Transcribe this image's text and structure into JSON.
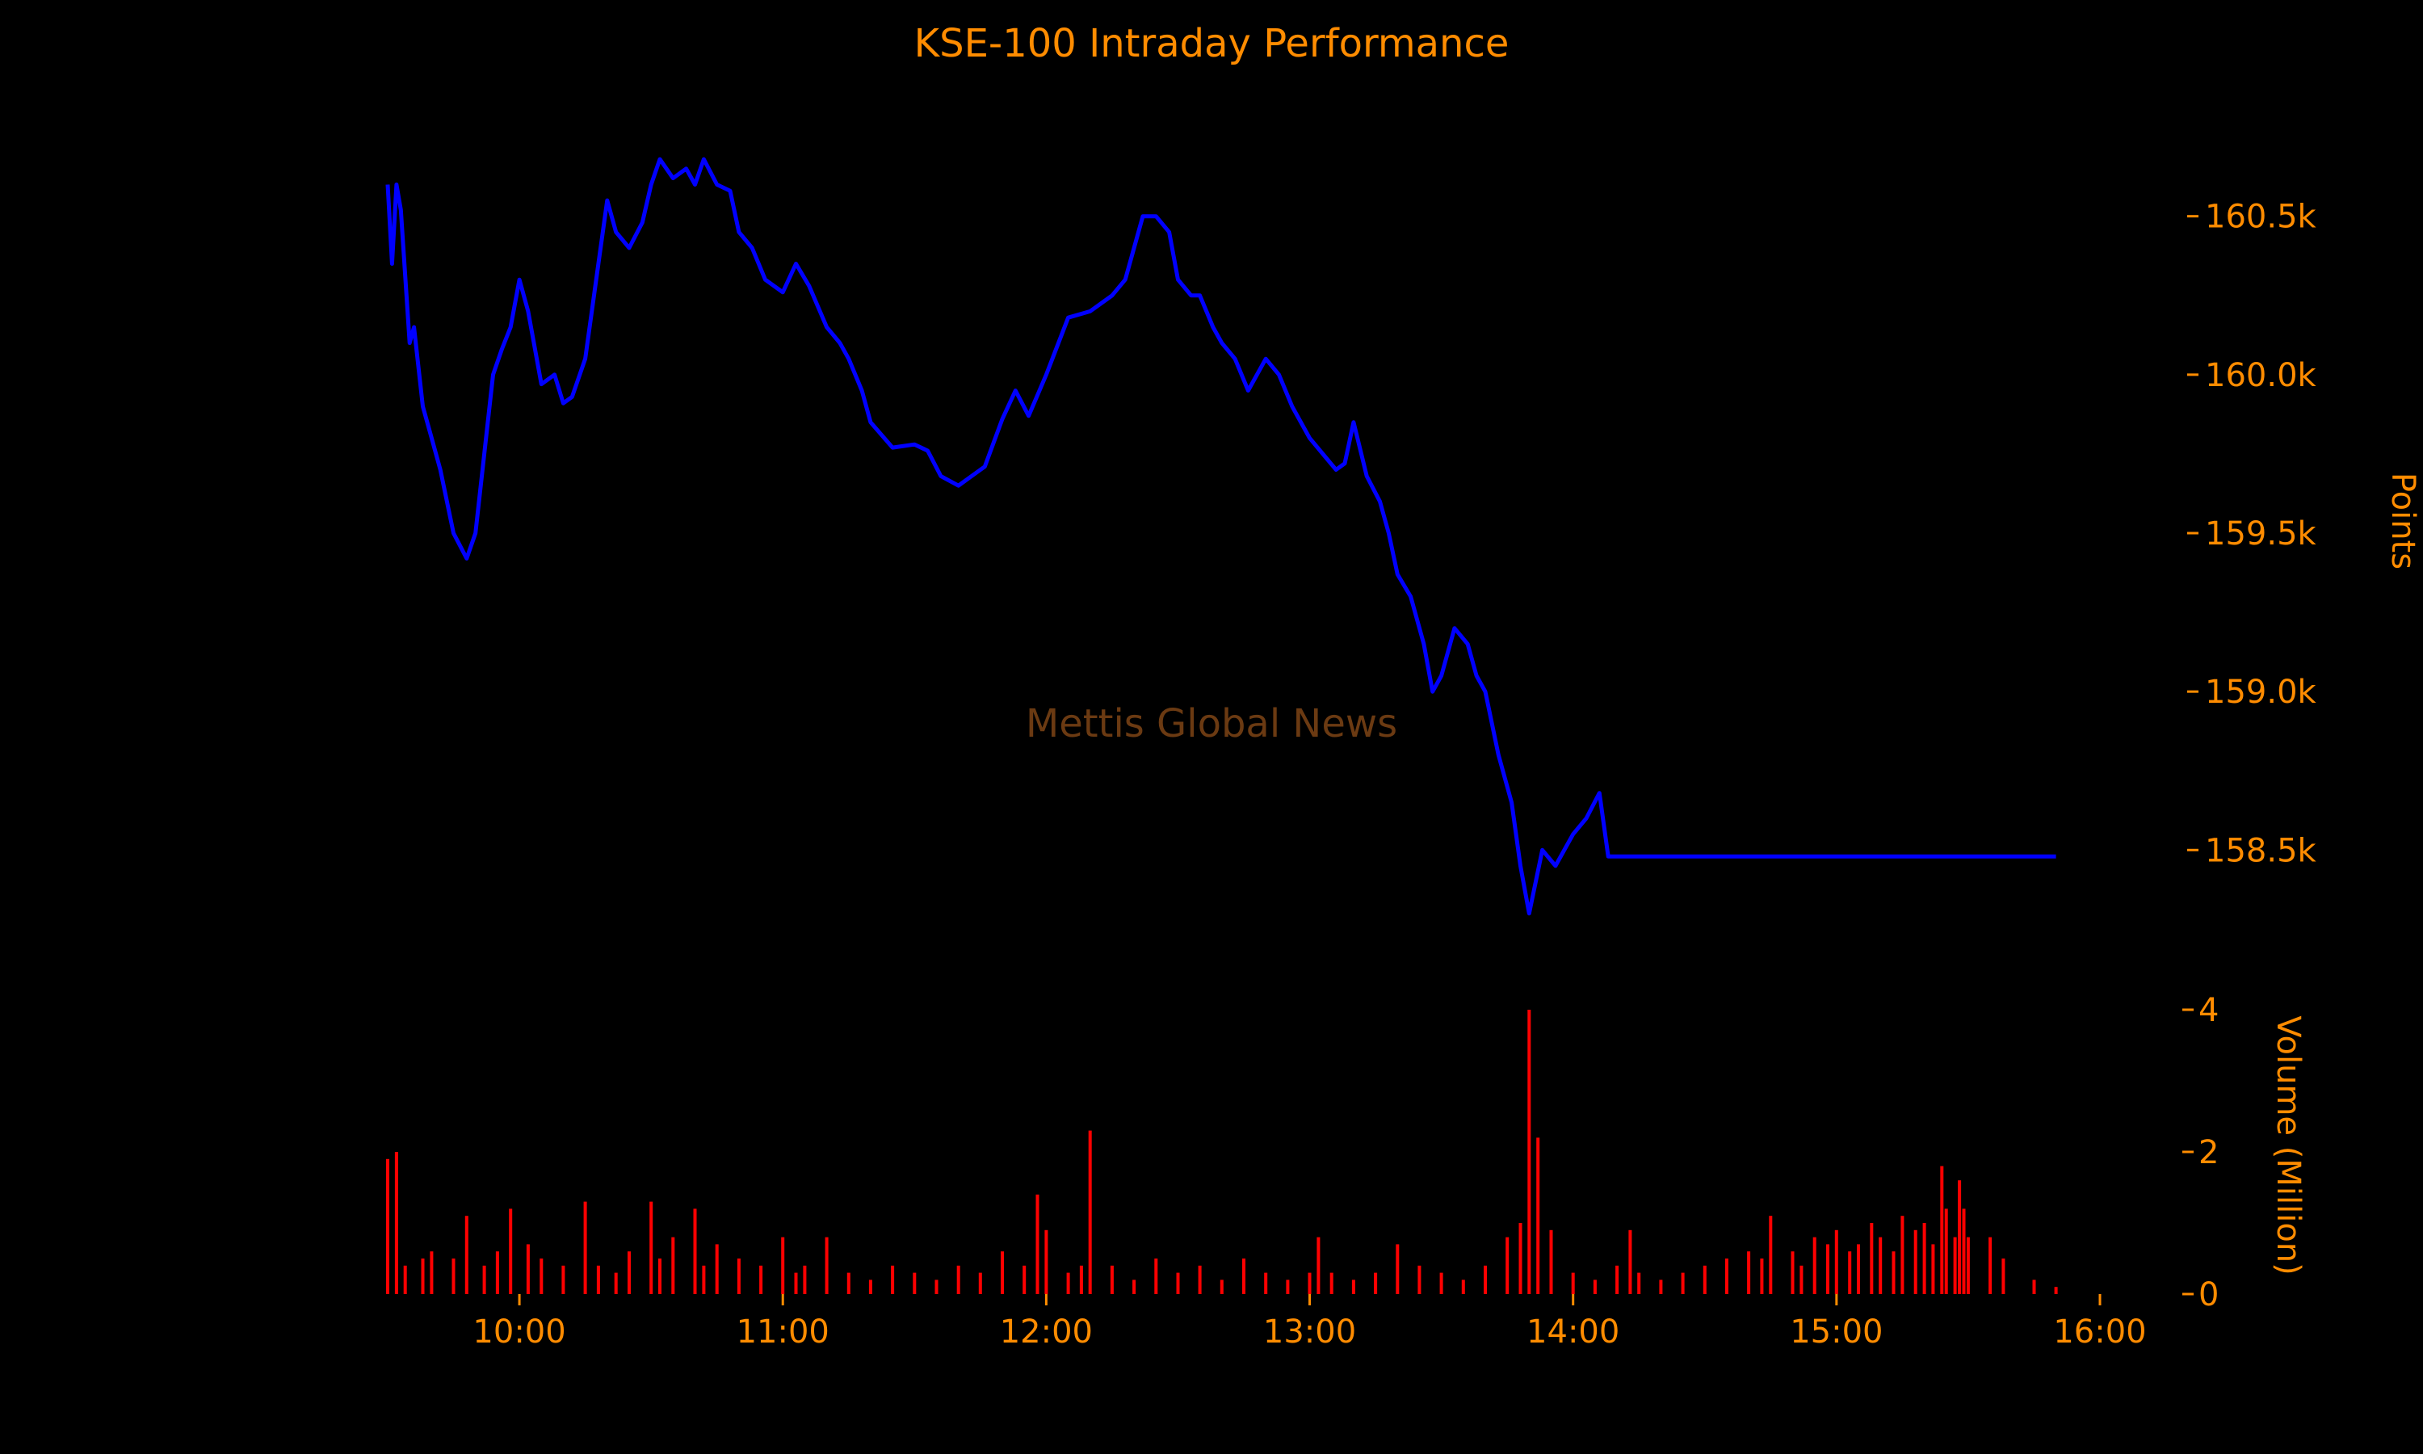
{
  "chart_data": [
    {
      "type": "line",
      "title": "KSE-100 Intraday Performance",
      "ylabel": "Points",
      "xlim": [
        "09:30",
        "16:00"
      ],
      "ylim": [
        158200,
        160800
      ],
      "yticks": [
        {
          "value": 158500,
          "label": "158.5k"
        },
        {
          "value": 159000,
          "label": "159.0k"
        },
        {
          "value": 159500,
          "label": "159.5k"
        },
        {
          "value": 160000,
          "label": "160.0k"
        },
        {
          "value": 160500,
          "label": "160.5k"
        }
      ],
      "grid": false,
      "series": [
        {
          "color": "#0000ff",
          "x": [
            "09:30",
            "09:31",
            "09:32",
            "09:33",
            "09:35",
            "09:36",
            "09:38",
            "09:40",
            "09:42",
            "09:45",
            "09:48",
            "09:50",
            "09:52",
            "09:54",
            "09:56",
            "09:58",
            "10:00",
            "10:02",
            "10:05",
            "10:08",
            "10:10",
            "10:12",
            "10:15",
            "10:18",
            "10:20",
            "10:22",
            "10:25",
            "10:28",
            "10:30",
            "10:32",
            "10:35",
            "10:38",
            "10:40",
            "10:42",
            "10:45",
            "10:48",
            "10:50",
            "10:53",
            "10:56",
            "11:00",
            "11:03",
            "11:06",
            "11:10",
            "11:13",
            "11:15",
            "11:18",
            "11:20",
            "11:25",
            "11:30",
            "11:33",
            "11:36",
            "11:40",
            "11:43",
            "11:46",
            "11:50",
            "11:53",
            "11:56",
            "12:00",
            "12:05",
            "12:10",
            "12:15",
            "12:18",
            "12:20",
            "12:22",
            "12:25",
            "12:28",
            "12:30",
            "12:33",
            "12:35",
            "12:38",
            "12:40",
            "12:43",
            "12:46",
            "12:50",
            "12:53",
            "12:56",
            "13:00",
            "13:03",
            "13:06",
            "13:08",
            "13:10",
            "13:13",
            "13:16",
            "13:18",
            "13:20",
            "13:23",
            "13:26",
            "13:28",
            "13:30",
            "13:33",
            "13:36",
            "13:38",
            "13:40",
            "13:43",
            "13:46",
            "13:48",
            "13:50",
            "13:53",
            "13:56",
            "14:00",
            "14:03",
            "14:06",
            "14:08",
            "14:10",
            "14:12",
            "14:15",
            "14:18",
            "14:20",
            "14:22",
            "14:25",
            "14:28",
            "14:30",
            "14:33",
            "14:35",
            "14:38",
            "14:40",
            "14:43",
            "14:45",
            "14:48",
            "14:50",
            "14:52",
            "14:55",
            "14:58",
            "15:00",
            "15:03",
            "15:05",
            "15:08",
            "15:10",
            "15:12",
            "15:15",
            "15:18",
            "15:20",
            "15:22",
            "15:25",
            "15:28",
            "15:29",
            "15:30",
            "15:45",
            "15:50"
          ],
          "y": [
            160600,
            160350,
            160600,
            160520,
            160100,
            160150,
            159900,
            159800,
            159700,
            159500,
            159420,
            159500,
            159750,
            160000,
            160080,
            160150,
            160300,
            160200,
            159970,
            160000,
            159910,
            159930,
            160050,
            160350,
            160550,
            160450,
            160400,
            160480,
            160600,
            160680,
            160620,
            160650,
            160600,
            160680,
            160600,
            160580,
            160450,
            160400,
            160300,
            160260,
            160350,
            160280,
            160150,
            160100,
            160050,
            159950,
            159850,
            159770,
            159780,
            159760,
            159680,
            159650,
            159680,
            159710,
            159860,
            159950,
            159870,
            160000,
            160180,
            160200,
            160250,
            160300,
            160400,
            160500,
            160500,
            160450,
            160300,
            160250,
            160250,
            160150,
            160100,
            160050,
            159950,
            160050,
            160000,
            159900,
            159800,
            159750,
            159700,
            159720,
            159850,
            159680,
            159600,
            159500,
            159370,
            159300,
            159150,
            159000,
            159050,
            159200,
            159150,
            159050,
            159000,
            158800,
            158650,
            158450,
            158300,
            158500,
            158450,
            158550,
            158600,
            158680,
            158480,
            158480,
            158480,
            158480,
            158480,
            158480,
            158480,
            158480,
            158480,
            158480,
            158480,
            158480,
            158480,
            158480,
            158480,
            158480,
            158480,
            158480,
            158480,
            158480,
            158480,
            158480,
            158480,
            158480,
            158480,
            158480,
            158480,
            158480,
            158480,
            158480,
            158480,
            158480,
            158480,
            158480,
            158480,
            158480,
            158480
          ]
        }
      ]
    },
    {
      "type": "bar",
      "ylabel": "Volume (Million)",
      "ylim": [
        0,
        4
      ],
      "yticks": [
        {
          "value": 0,
          "label": "0"
        },
        {
          "value": 2,
          "label": "2"
        },
        {
          "value": 4,
          "label": "4"
        }
      ],
      "xticks": [
        "10:00",
        "11:00",
        "12:00",
        "13:00",
        "14:00",
        "15:00",
        "16:00"
      ],
      "xlim": [
        "09:30",
        "16:00"
      ],
      "grid": false,
      "series": [
        {
          "color": "#ff0000",
          "x": [
            "09:30",
            "09:32",
            "09:34",
            "09:38",
            "09:40",
            "09:45",
            "09:48",
            "09:52",
            "09:55",
            "09:58",
            "10:02",
            "10:05",
            "10:10",
            "10:15",
            "10:18",
            "10:22",
            "10:25",
            "10:30",
            "10:32",
            "10:35",
            "10:40",
            "10:42",
            "10:45",
            "10:50",
            "10:55",
            "11:00",
            "11:03",
            "11:05",
            "11:10",
            "11:15",
            "11:20",
            "11:25",
            "11:30",
            "11:35",
            "11:40",
            "11:45",
            "11:50",
            "11:55",
            "11:58",
            "12:00",
            "12:05",
            "12:08",
            "12:10",
            "12:15",
            "12:20",
            "12:25",
            "12:30",
            "12:35",
            "12:40",
            "12:45",
            "12:50",
            "12:55",
            "13:00",
            "13:02",
            "13:05",
            "13:10",
            "13:15",
            "13:20",
            "13:25",
            "13:30",
            "13:35",
            "13:40",
            "13:45",
            "13:48",
            "13:50",
            "13:52",
            "13:55",
            "14:00",
            "14:05",
            "14:10",
            "14:13",
            "14:15",
            "14:20",
            "14:25",
            "14:30",
            "14:35",
            "14:40",
            "14:43",
            "14:45",
            "14:50",
            "14:52",
            "14:55",
            "14:58",
            "15:00",
            "15:03",
            "15:05",
            "15:08",
            "15:10",
            "15:13",
            "15:15",
            "15:18",
            "15:20",
            "15:22",
            "15:24",
            "15:25",
            "15:27",
            "15:28",
            "15:29",
            "15:30",
            "15:35",
            "15:38",
            "15:45",
            "15:50"
          ],
          "values": [
            1.9,
            2.0,
            0.4,
            0.5,
            0.6,
            0.5,
            1.1,
            0.4,
            0.6,
            1.2,
            0.7,
            0.5,
            0.4,
            1.3,
            0.4,
            0.3,
            0.6,
            1.3,
            0.5,
            0.8,
            1.2,
            0.4,
            0.7,
            0.5,
            0.4,
            0.8,
            0.3,
            0.4,
            0.8,
            0.3,
            0.2,
            0.4,
            0.3,
            0.2,
            0.4,
            0.3,
            0.6,
            0.4,
            1.4,
            0.9,
            0.3,
            0.4,
            2.3,
            0.4,
            0.2,
            0.5,
            0.3,
            0.4,
            0.2,
            0.5,
            0.3,
            0.2,
            0.3,
            0.8,
            0.3,
            0.2,
            0.3,
            0.7,
            0.4,
            0.3,
            0.2,
            0.4,
            0.8,
            1.0,
            4.0,
            2.2,
            0.9,
            0.3,
            0.2,
            0.4,
            0.9,
            0.3,
            0.2,
            0.3,
            0.4,
            0.5,
            0.6,
            0.5,
            1.1,
            0.6,
            0.4,
            0.8,
            0.7,
            0.9,
            0.6,
            0.7,
            1.0,
            0.8,
            0.6,
            1.1,
            0.9,
            1.0,
            0.7,
            1.8,
            1.2,
            0.8,
            1.6,
            1.2,
            0.8,
            0.8,
            0.5,
            0.2,
            0.1
          ]
        }
      ]
    }
  ],
  "watermark": "Mettis Global News",
  "colors": {
    "background": "#000000",
    "text": "#ff8c00",
    "watermark": "#6b3a12",
    "line": "#0000ff",
    "volume": "#ff0000"
  }
}
